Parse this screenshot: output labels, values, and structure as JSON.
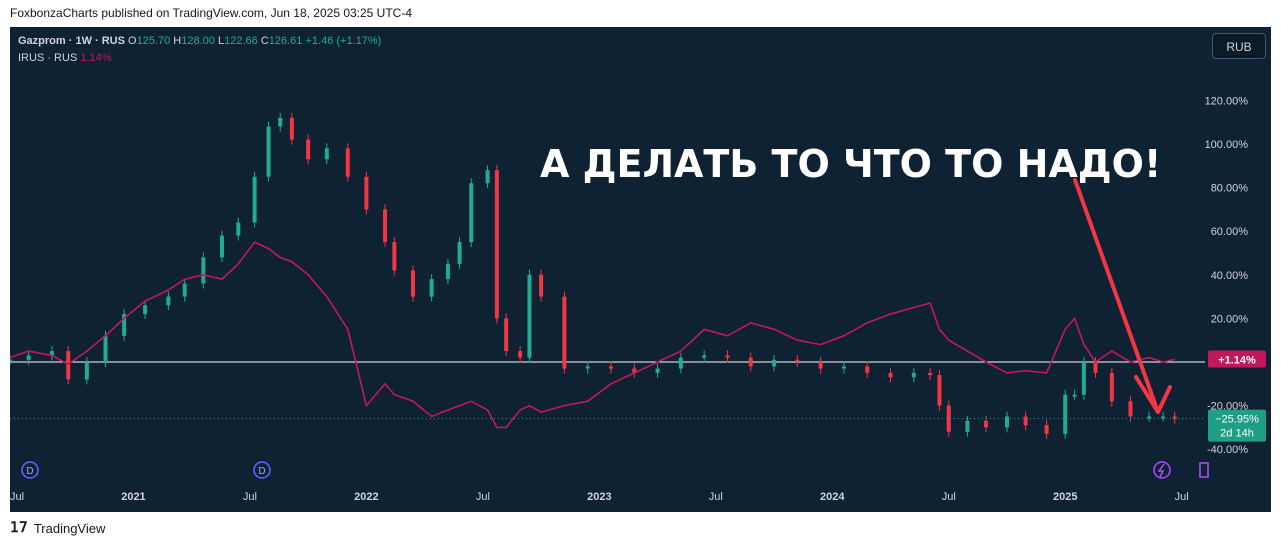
{
  "header": {
    "published": "FoxbonzaCharts published on TradingView.com, Jun 18, 2025 03:25 UTC-4"
  },
  "legend": {
    "symbol": "Gazprom · 1W · RUS",
    "o_label": "O",
    "o_val": "125.70",
    "h_label": "H",
    "h_val": "128.00",
    "l_label": "L",
    "l_val": "122.66",
    "c_label": "C",
    "c_val": "126.61",
    "change": "+1.46 (+1.17%)",
    "compare_symbol": "IRUS · RUS",
    "compare_val": "1.14%"
  },
  "currency_button": "RUB",
  "annotation": "А ДЕЛАТЬ ТО ЧТО ТО НАДО!",
  "footer": {
    "brand": "TradingView"
  },
  "colors": {
    "up": "#22ab94",
    "down": "#f23645",
    "compare": "#c2185b",
    "arrow": "#f23645",
    "bg": "#0e2233"
  },
  "chart_data": {
    "type": "line",
    "y_unit": "% change",
    "ylim": [
      -40,
      130
    ],
    "y_ticks": [
      "120.00%",
      "100.00%",
      "80.00%",
      "60.00%",
      "40.00%",
      "20.00%",
      "-20.00%",
      "-40.00%"
    ],
    "y_tick_values": [
      120,
      100,
      80,
      60,
      40,
      20,
      -20,
      -40
    ],
    "x_ticks": [
      "Jul",
      "2021",
      "Jul",
      "2022",
      "Jul",
      "2023",
      "Jul",
      "2024",
      "Jul",
      "2025",
      "Jul"
    ],
    "x_tick_years": [
      2020.5,
      2021.0,
      2021.5,
      2022.0,
      2022.5,
      2023.0,
      2023.5,
      2024.0,
      2024.5,
      2025.0,
      2025.5
    ],
    "xlim": [
      2020.47,
      2025.6
    ],
    "series": [
      {
        "name": "Gazprom",
        "style": "candles",
        "x": [
          2020.47,
          2020.55,
          2020.65,
          2020.72,
          2020.8,
          2020.88,
          2020.96,
          2021.05,
          2021.15,
          2021.22,
          2021.3,
          2021.38,
          2021.45,
          2021.52,
          2021.58,
          2021.63,
          2021.68,
          2021.75,
          2021.83,
          2021.92,
          2022.0,
          2022.08,
          2022.12,
          2022.2,
          2022.28,
          2022.35,
          2022.4,
          2022.45,
          2022.52,
          2022.56,
          2022.6,
          2022.66,
          2022.7,
          2022.75,
          2022.85,
          2022.95,
          2023.05,
          2023.15,
          2023.25,
          2023.35,
          2023.45,
          2023.55,
          2023.65,
          2023.75,
          2023.85,
          2023.95,
          2024.05,
          2024.15,
          2024.25,
          2024.35,
          2024.42,
          2024.46,
          2024.5,
          2024.58,
          2024.66,
          2024.75,
          2024.83,
          2024.92,
          2025.0,
          2025.04,
          2025.08,
          2025.13,
          2025.2,
          2025.28,
          2025.36,
          2025.42,
          2025.47
        ],
        "values": [
          1,
          3,
          5,
          -8,
          0,
          12,
          22,
          26,
          30,
          36,
          48,
          58,
          64,
          85,
          108,
          112,
          102,
          93,
          98,
          85,
          70,
          55,
          42,
          30,
          38,
          45,
          55,
          82,
          88,
          20,
          5,
          2,
          40,
          30,
          -3,
          -2,
          -3,
          -5,
          -3,
          2,
          3,
          2,
          -2,
          1,
          0,
          -3,
          -2,
          -5,
          -7,
          -5,
          -6,
          -20,
          -32,
          -27,
          -30,
          -25,
          -29,
          -33,
          -15,
          -15,
          0,
          -5,
          -18,
          -25,
          -25,
          -25,
          -26
        ]
      },
      {
        "name": "IRUS",
        "x": [
          2020.47,
          2020.55,
          2020.65,
          2020.72,
          2020.8,
          2020.88,
          2020.96,
          2021.05,
          2021.15,
          2021.22,
          2021.3,
          2021.38,
          2021.45,
          2021.52,
          2021.58,
          2021.63,
          2021.68,
          2021.75,
          2021.83,
          2021.92,
          2022.0,
          2022.08,
          2022.12,
          2022.2,
          2022.28,
          2022.35,
          2022.4,
          2022.45,
          2022.52,
          2022.56,
          2022.6,
          2022.66,
          2022.7,
          2022.75,
          2022.85,
          2022.95,
          2023.05,
          2023.15,
          2023.25,
          2023.35,
          2023.45,
          2023.55,
          2023.65,
          2023.75,
          2023.85,
          2023.95,
          2024.05,
          2024.15,
          2024.25,
          2024.35,
          2024.42,
          2024.46,
          2024.5,
          2024.58,
          2024.66,
          2024.75,
          2024.83,
          2024.92,
          2025.0,
          2025.04,
          2025.08,
          2025.13,
          2025.2,
          2025.28,
          2025.36,
          2025.42,
          2025.47
        ],
        "values": [
          2,
          5,
          3,
          -1,
          5,
          12,
          20,
          28,
          33,
          38,
          40,
          38,
          45,
          55,
          52,
          48,
          46,
          40,
          30,
          15,
          -20,
          -10,
          -15,
          -18,
          -25,
          -22,
          -20,
          -18,
          -22,
          -30,
          -30,
          -22,
          -20,
          -23,
          -20,
          -18,
          -10,
          -5,
          0,
          5,
          15,
          12,
          18,
          15,
          10,
          8,
          12,
          18,
          22,
          25,
          27,
          15,
          10,
          5,
          0,
          -5,
          -4,
          -5,
          15,
          20,
          8,
          0,
          5,
          0,
          2,
          0,
          1.14
        ]
      }
    ],
    "last_labels": {
      "irus": "+1.14%",
      "gazprom": "−25.95%",
      "timer": "2d 14h"
    }
  }
}
